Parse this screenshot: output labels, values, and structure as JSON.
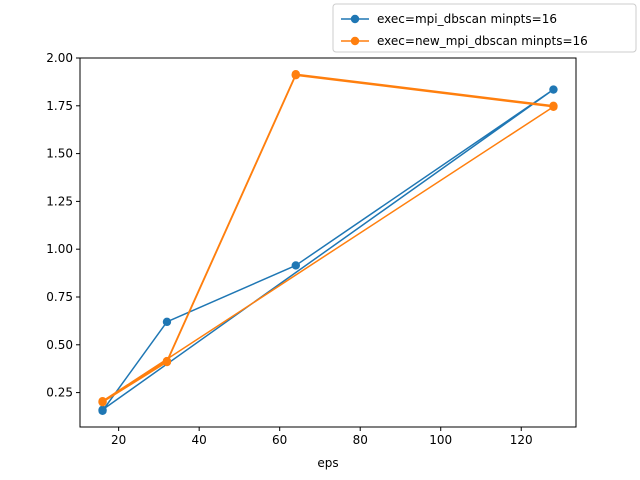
{
  "chart_data": {
    "type": "line",
    "title": "",
    "xlabel": "eps",
    "ylabel": "",
    "xlim": [
      10.4,
      133.6
    ],
    "ylim": [
      0.07,
      2.0
    ],
    "xticks": [
      20,
      40,
      60,
      80,
      100,
      120
    ],
    "xtick_labels": [
      "20",
      "40",
      "60",
      "80",
      "100",
      "120"
    ],
    "yticks": [
      0.25,
      0.5,
      0.75,
      1.0,
      1.25,
      1.5,
      1.75,
      2.0
    ],
    "ytick_labels": [
      "0.25",
      "0.50",
      "0.75",
      "1.00",
      "1.25",
      "1.50",
      "1.75",
      "2.00"
    ],
    "grid": false,
    "legend_position": "top-right, outside above plot",
    "series": [
      {
        "name": "exec=mpi_dbscan minpts=16",
        "color": "#1f77b4",
        "marker": "circle",
        "x": [
          16,
          32,
          64,
          128,
          16
        ],
        "y": [
          0.155,
          0.62,
          0.915,
          1.835,
          0.16
        ]
      },
      {
        "name": "exec=new_mpi_dbscan minpts=16",
        "color": "#ff7f0e",
        "marker": "circle",
        "x": [
          16,
          32,
          64,
          128,
          16,
          32,
          64,
          128
        ],
        "y": [
          0.2,
          0.41,
          1.91,
          1.745,
          0.205,
          0.415,
          1.915,
          1.75
        ]
      }
    ]
  }
}
